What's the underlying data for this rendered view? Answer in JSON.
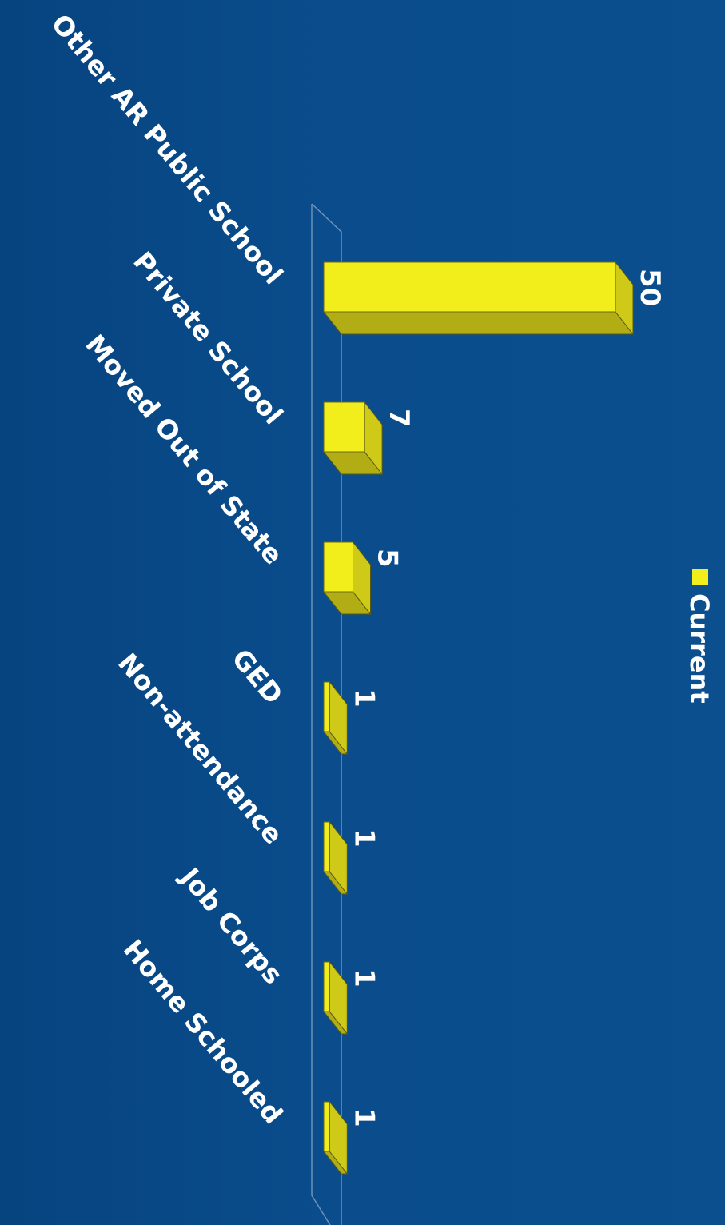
{
  "chart_data": {
    "type": "bar",
    "orientation": "horizontal-3d",
    "title": "",
    "xlabel": "",
    "ylabel": "",
    "categories": [
      "Other AR Public School",
      "Private School",
      "Moved Out of State",
      "GED",
      "Non-attendance",
      "Job Corps",
      "Home Schooled"
    ],
    "series": [
      {
        "name": "Current",
        "values": [
          50,
          7,
          5,
          1,
          1,
          1,
          1
        ],
        "color": "#f2ee1c"
      }
    ],
    "value_axis_range": [
      0,
      50
    ],
    "data_labels": true,
    "grid": false,
    "legend_position": "right"
  }
}
